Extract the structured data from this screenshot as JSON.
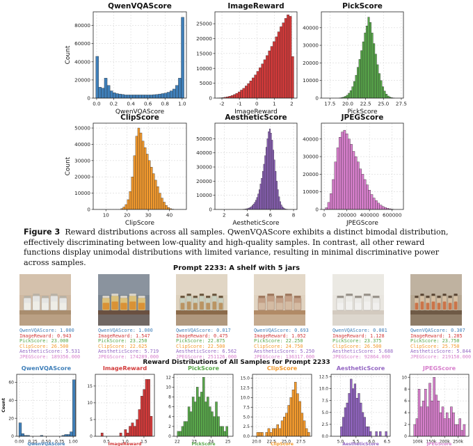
{
  "figure": {
    "caption_label": "Figure 3",
    "caption_text": "Reward distributions across all samples. QwenVQAScore exhibits a distinct bimodal distribution, effectively discriminating between low-quality and high-quality samples. In contrast, all other reward functions display unimodal distributions with limited variance, resulting in minimal discriminative power across samples."
  },
  "colors": {
    "qwen": "#3f7fb9",
    "imagereward": "#d23a3a",
    "pick": "#59a84b",
    "clip": "#f39a2e",
    "aesthetic": "#9366c2",
    "jpeg": "#d77fcc"
  },
  "top_charts": [
    {
      "type": "bar",
      "title": "QwenVQAScore",
      "xlabel": "QwenVQAScore",
      "ylabel": "Count",
      "color": "#3f7fb9",
      "xlim": [
        -0.04,
        1.05
      ],
      "ylim": [
        0,
        95000
      ],
      "xticks": [
        0.0,
        0.2,
        0.4,
        0.6,
        0.8,
        1.0
      ],
      "xtick_labels": [
        "0.0",
        "0.2",
        "0.4",
        "0.6",
        "0.8",
        "1.0"
      ],
      "yticks": [
        0,
        20000,
        40000,
        60000,
        80000
      ],
      "ytick_labels": [
        "0",
        "20000",
        "40000",
        "60000",
        "80000"
      ],
      "bin_start": -0.01,
      "bin_width": 0.0333,
      "values": [
        46000,
        12000,
        11000,
        22000,
        14000,
        8000,
        6000,
        5000,
        4500,
        4000,
        3500,
        3500,
        3500,
        3500,
        3500,
        3500,
        3500,
        3500,
        3500,
        3500,
        3800,
        4000,
        4500,
        5000,
        5500,
        6500,
        8000,
        10000,
        14000,
        22000,
        89000
      ]
    },
    {
      "type": "bar",
      "title": "ImageReward",
      "xlabel": "ImageReward",
      "ylabel": "",
      "color": "#d23a3a",
      "xlim": [
        -2.4,
        2.3
      ],
      "ylim": [
        0,
        29000
      ],
      "xticks": [
        -2,
        -1,
        0,
        1,
        2
      ],
      "xtick_labels": [
        "-2",
        "-1",
        "0",
        "1",
        "2"
      ],
      "yticks": [
        0,
        5000,
        10000,
        15000,
        20000,
        25000
      ],
      "ytick_labels": [
        "0",
        "5000",
        "10000",
        "15000",
        "20000",
        "25000"
      ],
      "bin_start": -2.28,
      "bin_width": 0.1333,
      "values": [
        50,
        100,
        180,
        300,
        450,
        650,
        900,
        1200,
        1600,
        2100,
        2700,
        3300,
        4100,
        4900,
        5800,
        6800,
        7800,
        9000,
        10200,
        11500,
        12900,
        14300,
        15900,
        17400,
        19000,
        20600,
        22300,
        24000,
        25300,
        26800,
        28000,
        27500,
        14000
      ]
    },
    {
      "type": "bar",
      "title": "PickScore",
      "xlabel": "PickScore",
      "ylabel": "",
      "color": "#59a84b",
      "xlim": [
        16.3,
        27.8
      ],
      "ylim": [
        0,
        49000
      ],
      "xticks": [
        17.5,
        20.0,
        22.5,
        25.0,
        27.5
      ],
      "xtick_labels": [
        "17.5",
        "20.0",
        "22.5",
        "25.0",
        "27.5"
      ],
      "yticks": [
        0,
        10000,
        20000,
        30000,
        40000
      ],
      "ytick_labels": [
        "0",
        "10000",
        "20000",
        "30000",
        "40000"
      ],
      "bin_start": 18.8,
      "bin_width": 0.25,
      "values": [
        150,
        300,
        600,
        1000,
        1700,
        2800,
        4300,
        6500,
        9500,
        13000,
        17500,
        22000,
        27000,
        32000,
        37000,
        41000,
        46000,
        43000,
        37000,
        31000,
        25000,
        19000,
        14000,
        10000,
        6500,
        4000,
        2300,
        1200,
        600,
        250,
        100
      ]
    },
    {
      "type": "bar",
      "title": "ClipScore",
      "xlabel": "ClipScore",
      "ylabel": "Count",
      "color": "#f39a2e",
      "xlim": [
        4,
        48
      ],
      "ylim": [
        0,
        53000
      ],
      "xticks": [
        10,
        20,
        30,
        40
      ],
      "xtick_labels": [
        "10",
        "20",
        "30",
        "40"
      ],
      "yticks": [
        0,
        10000,
        20000,
        30000,
        40000,
        50000
      ],
      "ytick_labels": [
        "0",
        "10000",
        "20000",
        "30000",
        "40000",
        "50000"
      ],
      "bin_start": 17,
      "bin_width": 1,
      "values": [
        500,
        1500,
        3000,
        6000,
        11000,
        20000,
        33000,
        45000,
        50000,
        47000,
        42000,
        38000,
        34000,
        30000,
        26000,
        22000,
        18000,
        14000,
        10000,
        7000,
        4500,
        2500,
        1200,
        500,
        200
      ]
    },
    {
      "type": "bar",
      "title": "AestheticScore",
      "xlabel": "AestheticScore",
      "ylabel": "",
      "color": "#9366c2",
      "xlim": [
        1.2,
        8.3
      ],
      "ylim": [
        0,
        61000
      ],
      "xticks": [
        2,
        4,
        6,
        8
      ],
      "xtick_labels": [
        "2",
        "4",
        "6",
        "8"
      ],
      "yticks": [
        0,
        10000,
        20000,
        30000,
        40000,
        50000
      ],
      "ytick_labels": [
        "0",
        "10000",
        "20000",
        "30000",
        "40000",
        "50000"
      ],
      "bin_start": 3.6,
      "bin_width": 0.1,
      "values": [
        100,
        200,
        300,
        500,
        700,
        1000,
        1400,
        2000,
        2800,
        3800,
        5000,
        6500,
        8500,
        11000,
        14000,
        18000,
        22000,
        27000,
        32000,
        38000,
        44000,
        50000,
        55000,
        57000,
        54000,
        49000,
        42000,
        35000,
        27000,
        20000,
        14000,
        9000,
        5500,
        3200,
        1800,
        1000,
        500,
        250,
        100
      ]
    },
    {
      "type": "bar",
      "title": "JPEGScore",
      "xlabel": "JPEGScore",
      "ylabel": "",
      "color": "#d77fcc",
      "xlim": [
        -25000,
        700000
      ],
      "ylim": [
        0,
        49000
      ],
      "xticks": [
        0,
        200000,
        400000,
        600000
      ],
      "xtick_labels": [
        "0",
        "200000",
        "400000",
        "600000"
      ],
      "yticks": [
        0,
        10000,
        20000,
        30000,
        40000
      ],
      "ytick_labels": [
        "0",
        "10000",
        "20000",
        "30000",
        "40000"
      ],
      "bin_start": 10000,
      "bin_width": 20000,
      "values": [
        1000,
        4000,
        9000,
        17000,
        27000,
        35000,
        41000,
        44000,
        45000,
        43000,
        40000,
        37000,
        33000,
        30000,
        27000,
        23000,
        20000,
        17000,
        14000,
        11000,
        8500,
        6500,
        5000,
        3600,
        2500,
        1700,
        1100,
        700,
        400,
        200
      ]
    }
  ],
  "prompt_title": "Prompt 2233: A shelf with 5 jars",
  "score_labels": [
    "QwenVQAScore:",
    "ImageReward:",
    "PickScore:",
    "ClipScore:",
    "AestheticScore:",
    "JPEGScore:"
  ],
  "samples": [
    {
      "scores": [
        "1.000",
        "0.943",
        "23.000",
        "26.500",
        "5.531",
        "189356.000"
      ],
      "wall": "#cfb9a1",
      "shelf": "#a98d6e",
      "jar": "#e7e9ea",
      "lid": "#b9b2a6",
      "fill": "#f0efe8",
      "jars": 5
    },
    {
      "scores": [
        "1.000",
        "1.547",
        "23.250",
        "22.625",
        "5.719",
        "174289.000"
      ],
      "wall": "#7a8591",
      "shelf": "#6a5040",
      "jar": "#e6c87a",
      "lid": "#d9d3c8",
      "fill": "#d88a2a",
      "jars": 5
    },
    {
      "scores": [
        "0.017",
        "0.475",
        "22.875",
        "22.500",
        "6.562",
        "251126.000"
      ],
      "wall": "#ddd1bd",
      "shelf": "#8b6a4a",
      "jar": "#c8d0c0",
      "lid": "#6e5a42",
      "fill": "#b78a52",
      "jars": 7
    },
    {
      "scores": [
        "0.693",
        "1.052",
        "22.250",
        "24.750",
        "5.250",
        "136317.000"
      ],
      "wall": "#e0d3c1",
      "shelf": "#b18a66",
      "jar": "#c09a80",
      "lid": "#a07a60",
      "fill": "#d7c0a8",
      "jars": 5
    },
    {
      "scores": [
        "0.001",
        "1.128",
        "23.375",
        "26.500",
        "5.688",
        "92864.000"
      ],
      "wall": "#e9e6e0",
      "shelf": "#d3cabf",
      "jar": "#ecebe7",
      "lid": "#9a948c",
      "fill": "#f2f1ee",
      "jars": 5
    },
    {
      "scores": [
        "0.307",
        "1.285",
        "23.750",
        "25.750",
        "5.844",
        "219158.000"
      ],
      "wall": "#b7a893",
      "shelf": "#6f5a46",
      "jar": "#d9c2a5",
      "lid": "#5e4a38",
      "fill": "#c8663a",
      "jars": 8
    }
  ],
  "dist_title": "Reward Distributions of All Samples for Prompt 2233",
  "bottom_charts": [
    {
      "type": "bar",
      "title": "QwenVQAScore",
      "xlabel": "QwenVQAScore",
      "ylabel": "Count",
      "color": "#3f7fb9",
      "xlim": [
        -0.05,
        1.05
      ],
      "ylim": [
        0,
        69
      ],
      "xticks": [
        0,
        0.25,
        0.5,
        0.75,
        1.0
      ],
      "xtick_labels": [
        "0.00",
        "0.25",
        "0.50",
        "0.75",
        "1.00"
      ],
      "yticks": [
        0,
        20,
        40,
        60
      ],
      "ytick_labels": [
        "0",
        "20",
        "40",
        "60"
      ],
      "bin_start": -0.01,
      "bin_width": 0.05,
      "values": [
        15,
        3,
        1,
        1,
        0,
        0,
        0,
        0,
        1,
        0,
        0,
        0,
        0,
        0,
        0,
        0,
        1,
        2,
        2,
        5,
        63
      ]
    },
    {
      "type": "bar",
      "title": "ImageReward",
      "xlabel": "ImageReward",
      "ylabel": "",
      "color": "#d23a3a",
      "xlim": [
        0.2,
        1.78
      ],
      "ylim": [
        0,
        18.5
      ],
      "xticks": [
        0.5,
        1.0,
        1.5
      ],
      "xtick_labels": [
        "0.5",
        "1.0",
        "1.5"
      ],
      "yticks": [
        0,
        5,
        10,
        15
      ],
      "ytick_labels": [
        "0",
        "5",
        "10",
        "15"
      ],
      "bin_start": 0.35,
      "bin_width": 0.0625,
      "values": [
        1,
        0,
        0,
        0,
        0,
        0,
        0,
        0,
        1,
        0,
        2,
        1,
        3,
        4,
        3,
        5,
        8,
        12,
        14,
        17,
        17,
        6
      ]
    },
    {
      "type": "bar",
      "title": "PickScore",
      "xlabel": "PickScore",
      "ylabel": "",
      "color": "#59a84b",
      "xlim": [
        21.8,
        25.3
      ],
      "ylim": [
        0,
        12.6
      ],
      "xticks": [
        22,
        23,
        24,
        25
      ],
      "xtick_labels": [
        "22",
        "23",
        "24",
        "25"
      ],
      "yticks": [
        0,
        2,
        4,
        6,
        8,
        10,
        12
      ],
      "ytick_labels": [
        "0",
        "2",
        "4",
        "6",
        "8",
        "10",
        "12"
      ],
      "bin_start": 22.0,
      "bin_width": 0.125,
      "values": [
        1,
        1,
        2,
        3,
        3,
        6,
        5,
        8,
        7,
        10,
        8,
        9,
        12,
        7,
        8,
        6,
        5,
        4,
        7,
        4,
        2,
        2,
        1,
        2
      ]
    },
    {
      "type": "bar",
      "title": "ClipScore",
      "xlabel": "ClipScore",
      "ylabel": "",
      "color": "#f39a2e",
      "xlim": [
        19.3,
        29.3
      ],
      "ylim": [
        0,
        16
      ],
      "xticks": [
        20,
        22.5,
        25,
        27.5
      ],
      "xtick_labels": [
        "20.0",
        "22.5",
        "25.0",
        "27.5"
      ],
      "yticks": [
        0,
        2.5,
        5,
        7.5,
        10,
        12.5,
        15
      ],
      "ytick_labels": [
        "0.0",
        "2.5",
        "5.0",
        "7.5",
        "10.0",
        "12.5",
        "15.0"
      ],
      "bin_start": 20.0,
      "bin_width": 0.375,
      "values": [
        1,
        1,
        1,
        0,
        1,
        2,
        1,
        2,
        2,
        3,
        2,
        4,
        5,
        6,
        8,
        10,
        12,
        14,
        11,
        9,
        6,
        4,
        2,
        1
      ]
    },
    {
      "type": "bar",
      "title": "AestheticScore",
      "xlabel": "AestheticScore",
      "ylabel": "",
      "color": "#9366c2",
      "xlim": [
        4.7,
        6.6
      ],
      "ylim": [
        0,
        13
      ],
      "xticks": [
        5.0,
        5.5,
        6.0,
        6.5
      ],
      "xtick_labels": [
        "5.0",
        "5.5",
        "6.0",
        "6.5"
      ],
      "yticks": [
        0,
        2.5,
        5,
        7.5,
        10,
        12.5
      ],
      "ytick_labels": [
        "0.0",
        "2.5",
        "5.0",
        "7.5",
        "10.0",
        "12.5"
      ],
      "bin_start": 5.0,
      "bin_width": 0.0625,
      "values": [
        2,
        4,
        6,
        7,
        9,
        12,
        10,
        11,
        8,
        9,
        7,
        5,
        4,
        2,
        2,
        1,
        0,
        0,
        1,
        0,
        1,
        0,
        0,
        1
      ]
    },
    {
      "type": "bar",
      "title": "JPEGScore",
      "xlabel": "JPEGScore",
      "ylabel": "",
      "color": "#d77fcc",
      "xlim": [
        70000,
        290000
      ],
      "ylim": [
        0,
        10.5
      ],
      "xticks": [
        100000,
        150000,
        200000,
        250000
      ],
      "xtick_labels": [
        "100k",
        "150k",
        "200k",
        "250k"
      ],
      "yticks": [
        0,
        2,
        4,
        6,
        8,
        10
      ],
      "ytick_labels": [
        "0",
        "2",
        "4",
        "6",
        "8",
        "10"
      ],
      "bin_start": 85000,
      "bin_width": 8000,
      "values": [
        2,
        3,
        8,
        5,
        6,
        8,
        5,
        9,
        6,
        10,
        7,
        6,
        4,
        5,
        3,
        4,
        3,
        5,
        4,
        2,
        2,
        3,
        1,
        2
      ]
    }
  ]
}
